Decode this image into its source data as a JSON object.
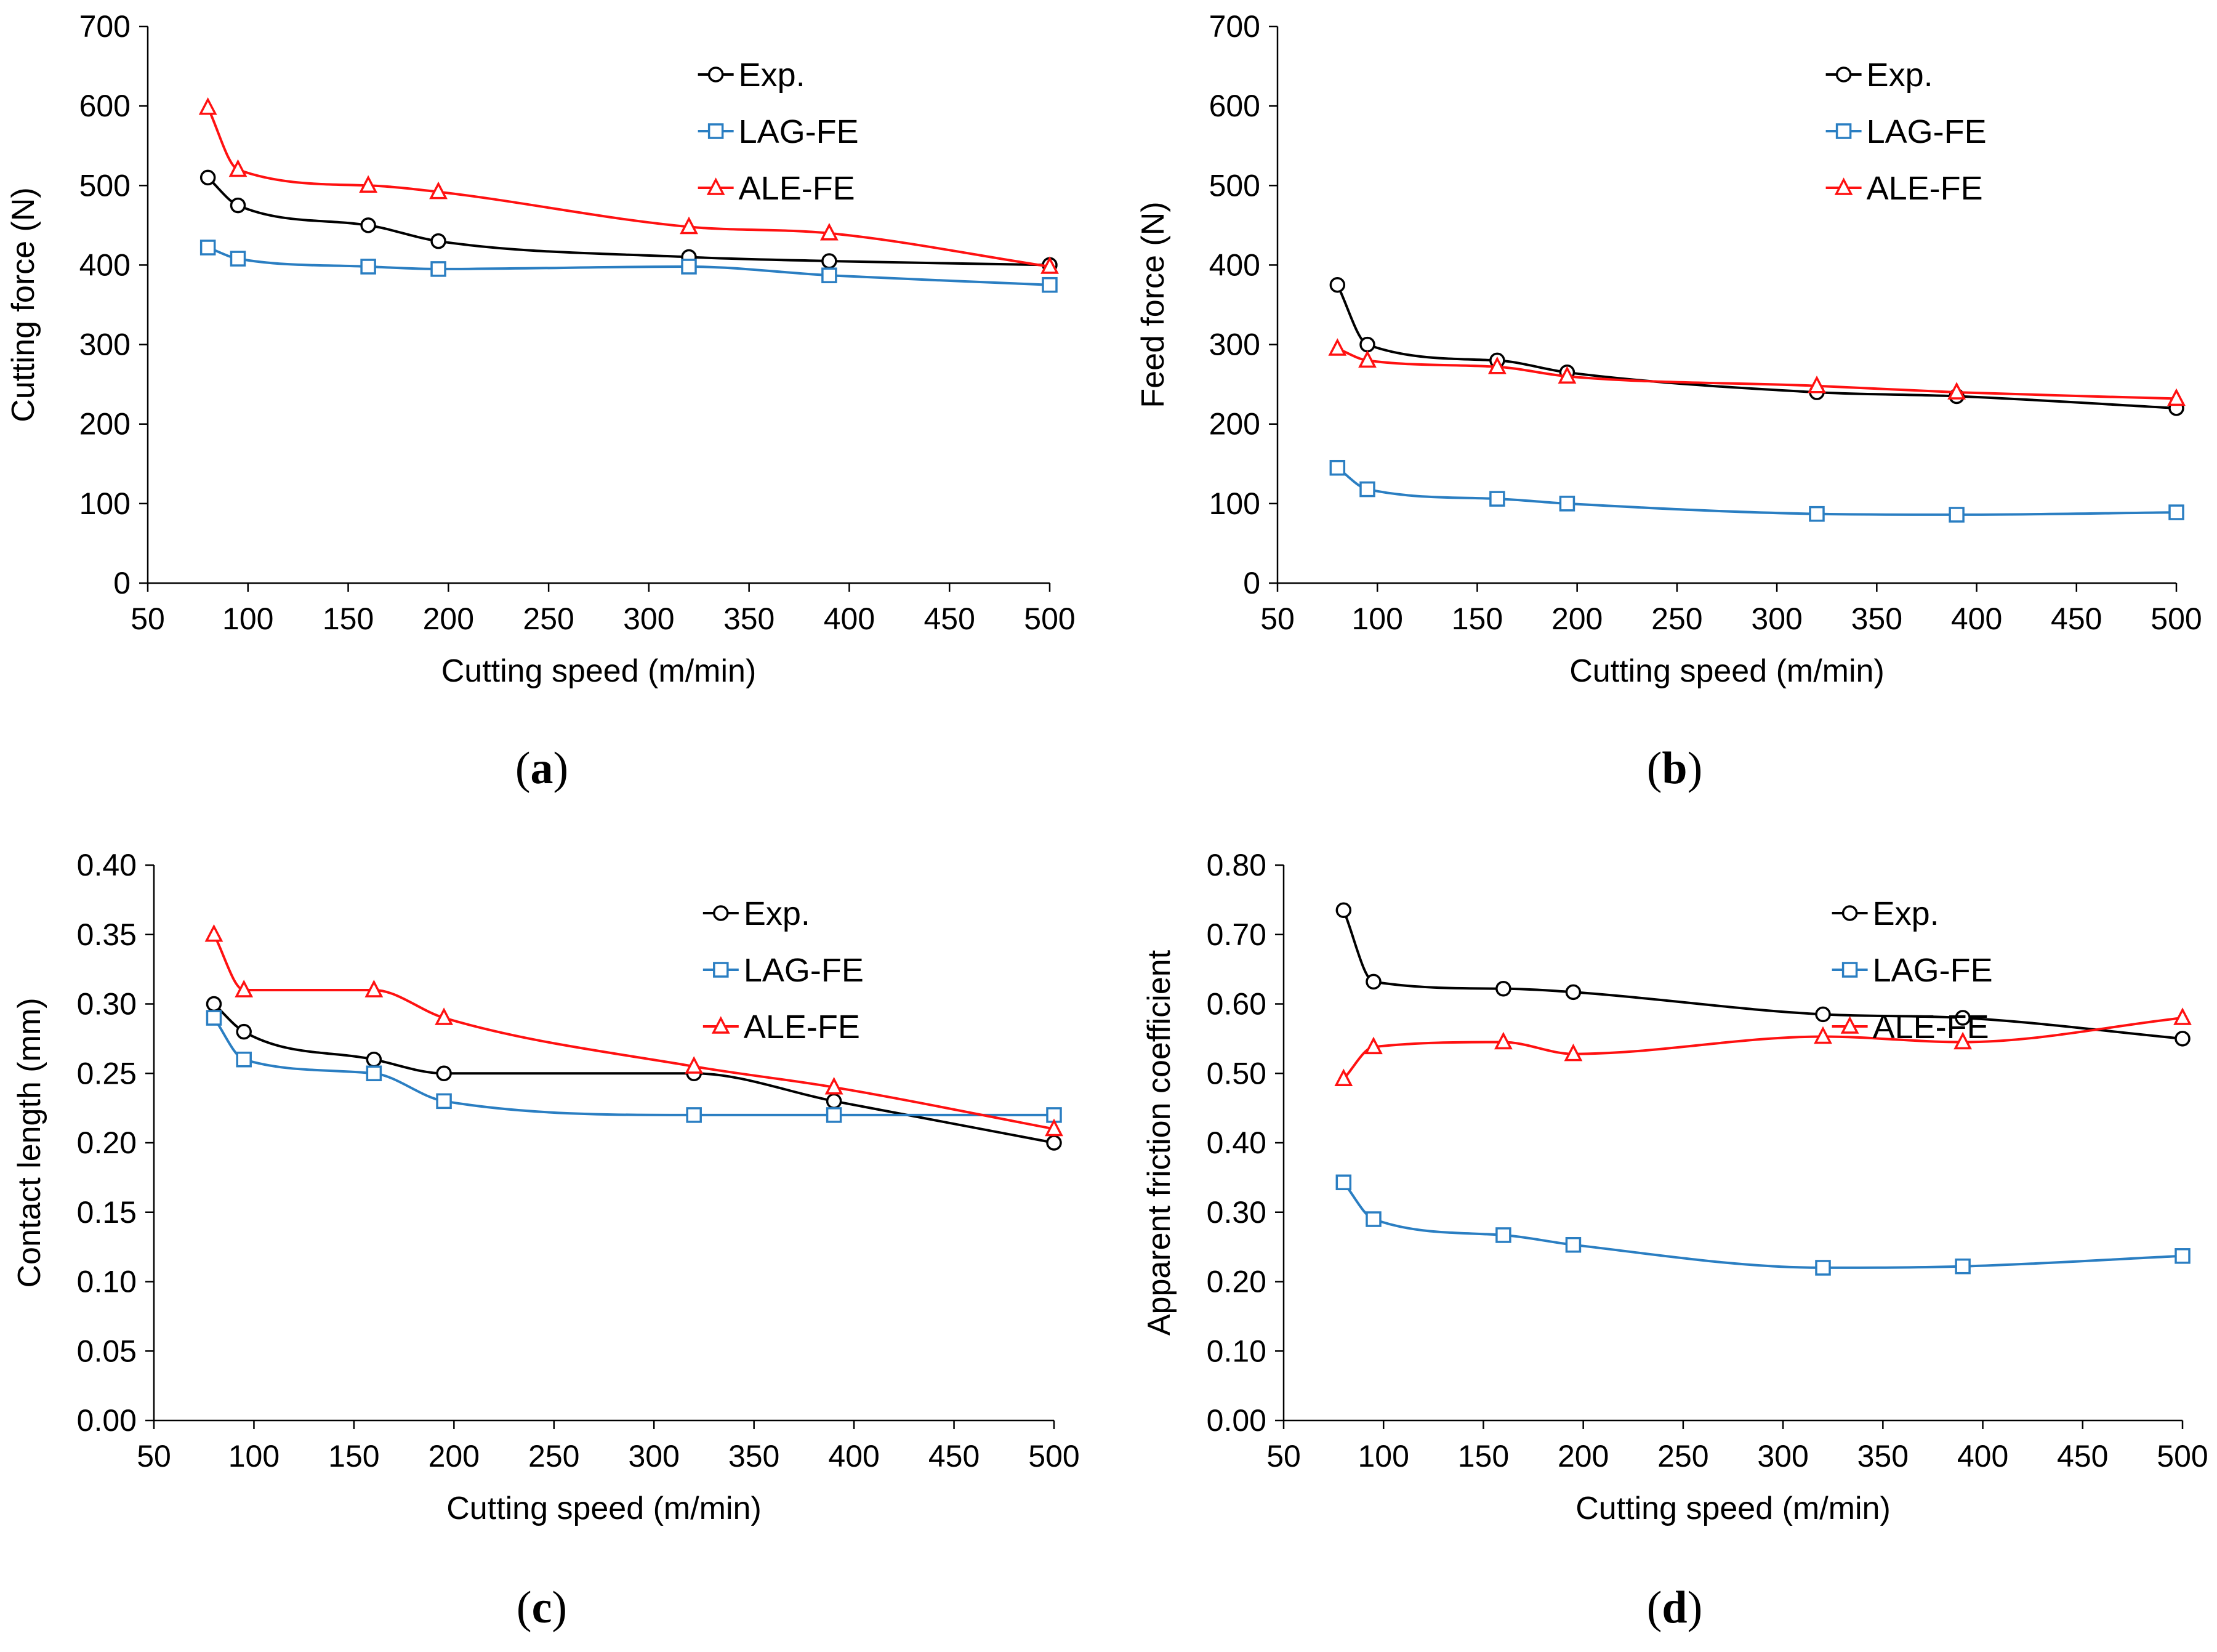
{
  "chart_data": [
    {
      "type": "line",
      "panel": "a",
      "xlabel": "Cutting speed (m/min)",
      "ylabel": "Cutting force (N)",
      "xlim": [
        50,
        500
      ],
      "xticks": [
        "50",
        "100",
        "150",
        "200",
        "250",
        "300",
        "350",
        "400",
        "450",
        "500"
      ],
      "ylim": [
        0,
        700
      ],
      "yticks": [
        "0",
        "100",
        "200",
        "300",
        "400",
        "500",
        "600",
        "700"
      ],
      "legend_position": "top-right",
      "x": [
        80,
        95,
        160,
        195,
        320,
        390,
        500
      ],
      "series": [
        {
          "name": "Exp.",
          "values": [
            510,
            475,
            450,
            430,
            410,
            405,
            400
          ]
        },
        {
          "name": "LAG-FE",
          "values": [
            422,
            408,
            398,
            395,
            398,
            387,
            375
          ]
        },
        {
          "name": "ALE-FE",
          "values": [
            598,
            520,
            500,
            492,
            448,
            440,
            398
          ]
        }
      ]
    },
    {
      "type": "line",
      "panel": "b",
      "xlabel": "Cutting speed (m/min)",
      "ylabel": "Feed force (N)",
      "xlim": [
        50,
        500
      ],
      "xticks": [
        "50",
        "100",
        "150",
        "200",
        "250",
        "300",
        "350",
        "400",
        "450",
        "500"
      ],
      "ylim": [
        0,
        700
      ],
      "yticks": [
        "0",
        "100",
        "200",
        "300",
        "400",
        "500",
        "600",
        "700"
      ],
      "legend_position": "top-right",
      "x": [
        80,
        95,
        160,
        195,
        320,
        390,
        500
      ],
      "series": [
        {
          "name": "Exp.",
          "values": [
            375,
            300,
            280,
            265,
            240,
            235,
            220
          ]
        },
        {
          "name": "LAG-FE",
          "values": [
            145,
            118,
            106,
            100,
            87,
            86,
            89
          ]
        },
        {
          "name": "ALE-FE",
          "values": [
            295,
            280,
            272,
            260,
            248,
            240,
            232
          ]
        }
      ]
    },
    {
      "type": "line",
      "panel": "c",
      "xlabel": "Cutting speed (m/min)",
      "ylabel": "Contact length (mm)",
      "xlim": [
        50,
        500
      ],
      "xticks": [
        "50",
        "100",
        "150",
        "200",
        "250",
        "300",
        "350",
        "400",
        "450",
        "500"
      ],
      "ylim": [
        0,
        0.4
      ],
      "yticks": [
        "0.00",
        "0.05",
        "0.10",
        "0.15",
        "0.20",
        "0.25",
        "0.30",
        "0.35",
        "0.40"
      ],
      "legend_position": "top-right",
      "x": [
        80,
        95,
        160,
        195,
        320,
        390,
        500
      ],
      "series": [
        {
          "name": "Exp.",
          "values": [
            0.3,
            0.28,
            0.26,
            0.25,
            0.25,
            0.23,
            0.2
          ]
        },
        {
          "name": "LAG-FE",
          "values": [
            0.29,
            0.26,
            0.25,
            0.23,
            0.22,
            0.22,
            0.22
          ]
        },
        {
          "name": "ALE-FE",
          "values": [
            0.35,
            0.31,
            0.31,
            0.29,
            0.255,
            0.24,
            0.21
          ]
        }
      ]
    },
    {
      "type": "line",
      "panel": "d",
      "xlabel": "Cutting speed (m/min)",
      "ylabel": "Apparent friction coefficient",
      "xlim": [
        50,
        500
      ],
      "xticks": [
        "50",
        "100",
        "150",
        "200",
        "250",
        "300",
        "350",
        "400",
        "450",
        "500"
      ],
      "ylim": [
        0,
        0.8
      ],
      "yticks": [
        "0.00",
        "0.10",
        "0.20",
        "0.30",
        "0.40",
        "0.50",
        "0.60",
        "0.70",
        "0.80"
      ],
      "legend_position": "top-right",
      "x": [
        80,
        95,
        160,
        195,
        320,
        390,
        500
      ],
      "series": [
        {
          "name": "Exp.",
          "values": [
            0.735,
            0.632,
            0.622,
            0.617,
            0.585,
            0.58,
            0.55
          ]
        },
        {
          "name": "LAG-FE",
          "values": [
            0.343,
            0.29,
            0.267,
            0.253,
            0.22,
            0.222,
            0.237
          ]
        },
        {
          "name": "ALE-FE",
          "values": [
            0.492,
            0.538,
            0.545,
            0.528,
            0.553,
            0.545,
            0.58
          ]
        }
      ]
    }
  ],
  "panel_labels": [
    "(a)",
    "(b)",
    "(c)",
    "(d)"
  ],
  "panel_letters": [
    "a",
    "b",
    "c",
    "d"
  ],
  "series_styles": {
    "Exp.": {
      "color": "#000000",
      "marker": "circle"
    },
    "LAG-FE": {
      "color": "#2a7ec2",
      "marker": "square"
    },
    "ALE-FE": {
      "color": "#ff1111",
      "marker": "triangle"
    }
  }
}
